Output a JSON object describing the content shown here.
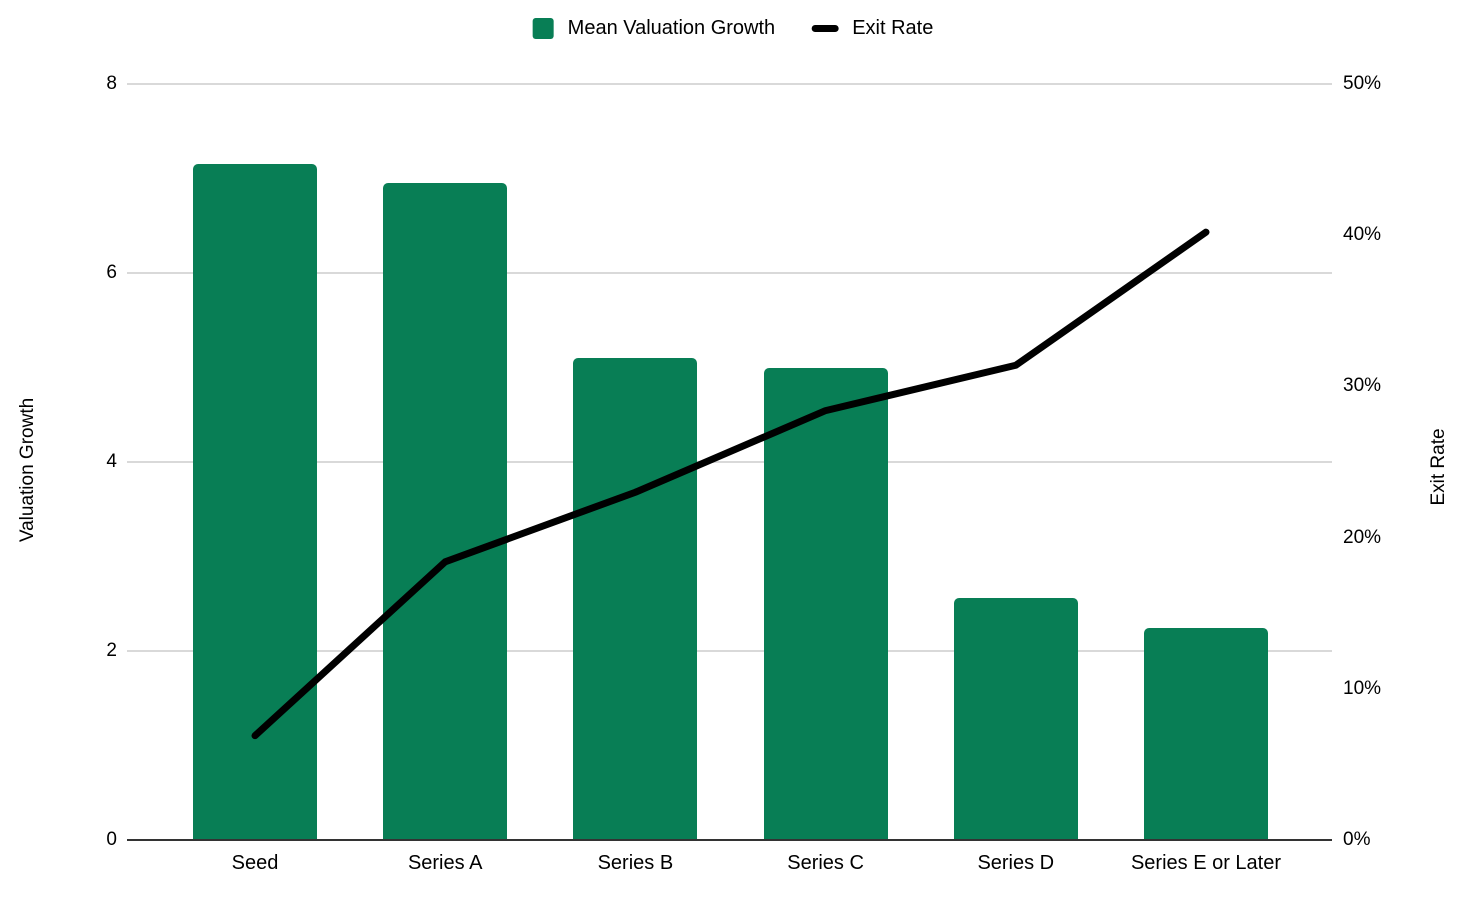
{
  "legend": {
    "bar_swatch": "green-square",
    "line_swatch": "black-dash"
  },
  "chart_data": {
    "type": "combo",
    "categories": [
      "Seed",
      "Series A",
      "Series B",
      "Series C",
      "Series D",
      "Series E or Later"
    ],
    "series": [
      {
        "name": "Mean Valuation Growth",
        "type": "bar",
        "axis": "left",
        "color": "#087e55",
        "values": [
          7.15,
          6.95,
          5.1,
          5.0,
          2.56,
          2.24
        ]
      },
      {
        "name": "Exit Rate",
        "type": "line",
        "axis": "right",
        "color": "#000000",
        "unit": "%",
        "values": [
          6.9,
          18.4,
          23.0,
          28.4,
          31.4,
          40.2
        ]
      }
    ],
    "left_axis": {
      "title": "Valuation Growth",
      "range": [
        0,
        8
      ],
      "ticks": [
        {
          "value": 0,
          "label": "0"
        },
        {
          "value": 2,
          "label": "2"
        },
        {
          "value": 4,
          "label": "4"
        },
        {
          "value": 6,
          "label": "6"
        },
        {
          "value": 8,
          "label": "8"
        }
      ]
    },
    "right_axis": {
      "title": "Exit Rate",
      "range": [
        0,
        50
      ],
      "ticks": [
        {
          "value": 0,
          "label": "0%"
        },
        {
          "value": 10,
          "label": "10%"
        },
        {
          "value": 20,
          "label": "20%"
        },
        {
          "value": 30,
          "label": "30%"
        },
        {
          "value": 40,
          "label": "40%"
        },
        {
          "value": 50,
          "label": "50%"
        }
      ]
    },
    "grid": true,
    "legend_position": "top",
    "colors": {
      "gridline": "#d9d9d9",
      "baseline": "#333333",
      "text": "#000000",
      "background": "#ffffff"
    }
  }
}
